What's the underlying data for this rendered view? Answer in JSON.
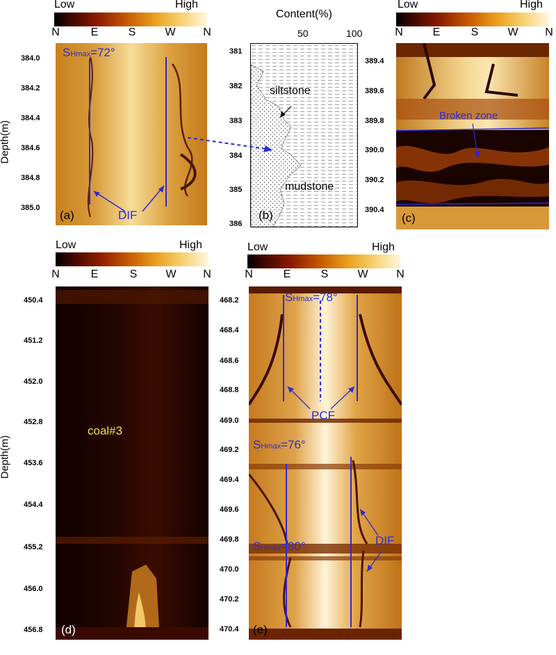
{
  "colorbar": {
    "low": "Low",
    "high": "High"
  },
  "directions": [
    "N",
    "E",
    "S",
    "W",
    "N"
  ],
  "y_axis_label": "Depth(m)",
  "panels": {
    "a": {
      "label": "(a)",
      "ticks": [
        "384.0",
        "384.2",
        "384.4",
        "384.6",
        "384.8",
        "385.0"
      ],
      "shmax": "S",
      "shmax_sub": "Hmax",
      "shmax_val": "=72°",
      "annotation": "DIF"
    },
    "b": {
      "label": "(b)",
      "title": "Content(%)",
      "xticks": [
        "50",
        "100"
      ],
      "ticks": [
        "381",
        "382",
        "383",
        "384",
        "385",
        "386"
      ],
      "siltstone": "siltstone",
      "mudstone": "mudstone"
    },
    "c": {
      "label": "(c)",
      "ticks": [
        "389.4",
        "389.6",
        "389.8",
        "390.0",
        "390.2",
        "390.4"
      ],
      "annotation": "Broken zone"
    },
    "d": {
      "label": "(d)",
      "ticks": [
        "450.4",
        "451.2",
        "452.0",
        "452.8",
        "453.6",
        "454.4",
        "455.2",
        "456.0",
        "456.8"
      ],
      "annotation": "coal#3"
    },
    "e": {
      "label": "(e)",
      "ticks": [
        "468.2",
        "468.4",
        "468.6",
        "468.8",
        "469.0",
        "469.2",
        "469.4",
        "469.6",
        "469.8",
        "470.0",
        "470.2",
        "470.4"
      ],
      "shmax_sub": "Hmax",
      "shmax1": "=78°",
      "shmax2": "=76°",
      "shmax3": "=80°",
      "shmax_s": "S",
      "pcf": "PCF",
      "dif": "DIF"
    }
  },
  "colors": {
    "annotation_blue": "#2b2bd6",
    "coal_label": "#f4e040"
  }
}
